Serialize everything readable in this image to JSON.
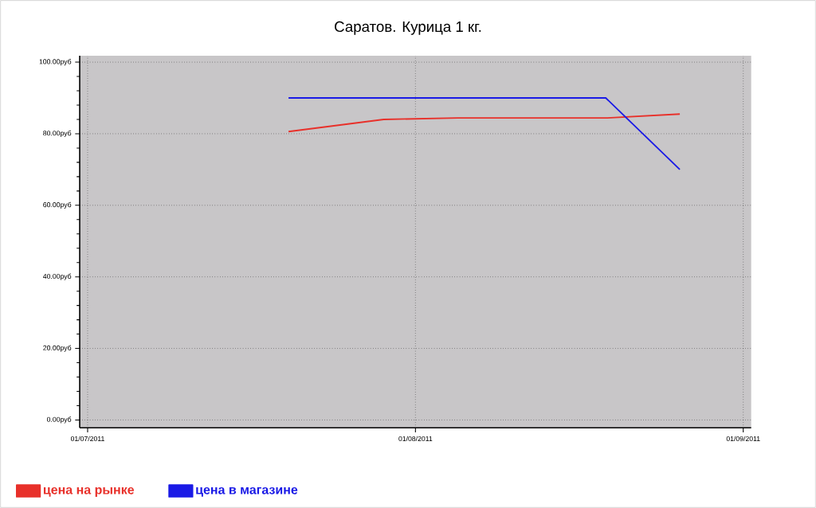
{
  "chart_data": {
    "type": "line",
    "title": "Саратов. Курица 1 кг.",
    "x": [
      "2011-07-20",
      "2011-07-29",
      "2011-08-05",
      "2011-08-12",
      "2011-08-19",
      "2011-08-26"
    ],
    "series": [
      {
        "name": "цена на рынке",
        "color": "#e8302a",
        "values": [
          80.6,
          84,
          84.4,
          84.4,
          84.4,
          85.5
        ]
      },
      {
        "name": "цена в магазине",
        "color": "#1a1ae6",
        "values": [
          90,
          90,
          90,
          90,
          90,
          70
        ]
      }
    ],
    "xlim": [
      "2011-06-30T06:00",
      "2011-09-01T18:00"
    ],
    "xticks": [
      {
        "value": "2011-07-01",
        "label": "01/07/2011"
      },
      {
        "value": "2011-08-01",
        "label": "01/08/2011"
      },
      {
        "value": "2011-09-01",
        "label": "01/09/2011"
      }
    ],
    "ylim": [
      -2.2,
      101.8
    ],
    "yticks": [
      {
        "value": 0,
        "label": "0.00руб"
      },
      {
        "value": 20,
        "label": "20.00руб"
      },
      {
        "value": 40,
        "label": "40.00руб"
      },
      {
        "value": 60,
        "label": "60.00руб"
      },
      {
        "value": 80,
        "label": "80.00руб"
      },
      {
        "value": 100,
        "label": "100.00руб"
      }
    ],
    "grid": true,
    "legend": "bottom left",
    "marker": "none",
    "line_style": "solid"
  }
}
